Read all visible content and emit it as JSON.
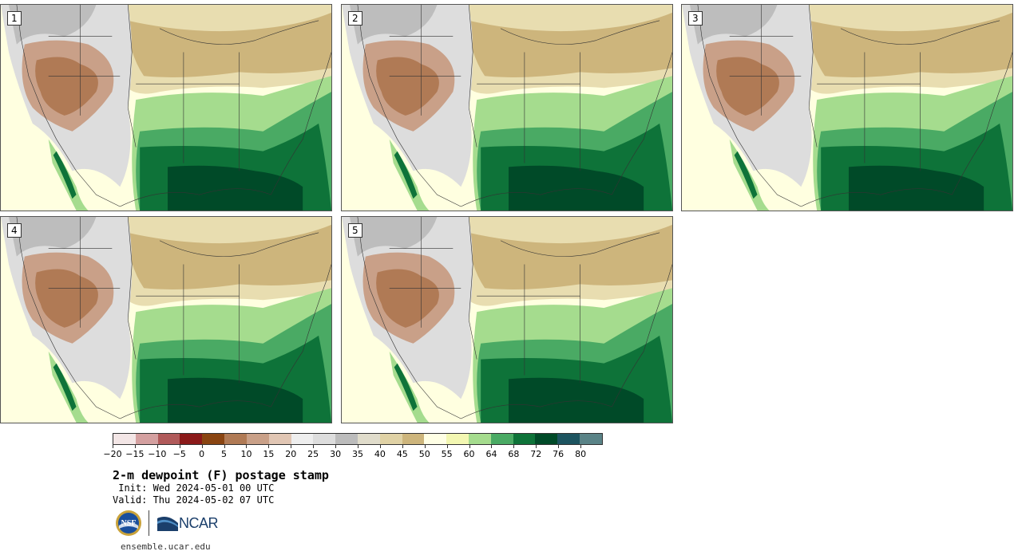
{
  "panels": [
    {
      "label": "1"
    },
    {
      "label": "2"
    },
    {
      "label": "3"
    },
    {
      "label": "4"
    },
    {
      "label": "5"
    }
  ],
  "colorbar": {
    "colors": [
      "#f3e6e6",
      "#d4a0a0",
      "#b05a5a",
      "#8b1a1a",
      "#8a4512",
      "#b07a55",
      "#c9a088",
      "#e1c6b4",
      "#eeeeee",
      "#dddddd",
      "#bcbcbc",
      "#e0dccb",
      "#e0d2a5",
      "#cdb57c",
      "#ffffe5",
      "#f3f7b2",
      "#a5dc8e",
      "#4aaa64",
      "#0e7339",
      "#004a28",
      "#1d5460",
      "#5a8387"
    ],
    "tick_labels": [
      "−20",
      "−15",
      "−10",
      "−5",
      "0",
      "5",
      "10",
      "15",
      "20",
      "25",
      "30",
      "35",
      "40",
      "45",
      "50",
      "55",
      "60",
      "64",
      "68",
      "72",
      "76",
      "80"
    ]
  },
  "title": "2-m dewpoint (F) postage stamp",
  "init_text": " Init: Wed 2024-05-01 00 UTC",
  "valid_text": "Valid: Thu 2024-05-02 07 UTC",
  "logos": {
    "nsf": "NSF",
    "ncar": "NCAR"
  },
  "website": "ensemble.ucar.edu"
}
